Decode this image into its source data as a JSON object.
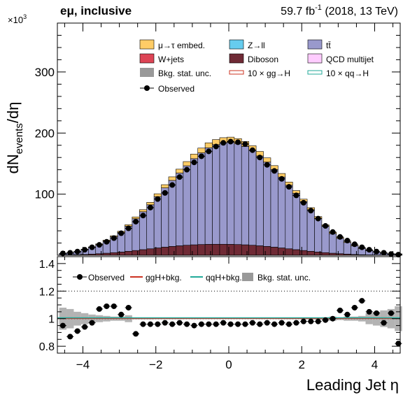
{
  "header": {
    "channel": "eμ, inclusive",
    "lumi": "59.7 fb",
    "lumi_sup": "-1",
    "lumi_tail": " (2018, 13 TeV)"
  },
  "chart_data": [
    {
      "type": "histogram-stack",
      "panel": "main",
      "ylabel": "dN",
      "ylabel_sub": "events",
      "ylabel_tail": "/dη",
      "y_multiplier": "×10",
      "y_multiplier_exp": "3",
      "xlim": [
        -4.7,
        4.7
      ],
      "ylim": [
        0,
        380
      ],
      "yticks": [
        100,
        200,
        300
      ],
      "x_bin_centers": [
        -4.55,
        -4.35,
        -4.15,
        -3.95,
        -3.75,
        -3.55,
        -3.35,
        -3.15,
        -2.95,
        -2.75,
        -2.55,
        -2.35,
        -2.15,
        -1.95,
        -1.75,
        -1.55,
        -1.35,
        -1.15,
        -0.95,
        -0.75,
        -0.55,
        -0.35,
        -0.15,
        0.05,
        0.25,
        0.45,
        0.65,
        0.85,
        1.05,
        1.25,
        1.45,
        1.65,
        1.85,
        2.05,
        2.25,
        2.45,
        2.65,
        2.85,
        3.05,
        3.25,
        3.45,
        3.65,
        3.85,
        4.05,
        4.25,
        4.45,
        4.65
      ],
      "series": [
        {
          "name": "Diboson",
          "color": "#6f2a35",
          "values": [
            0.4,
            0.6,
            0.9,
            1.3,
            1.9,
            2.6,
            3.4,
            4.3,
            5.3,
            6.5,
            7.8,
            9.2,
            10.6,
            12.0,
            13.3,
            14.5,
            15.5,
            16.4,
            17.1,
            17.6,
            17.9,
            18.0,
            18.0,
            17.9,
            17.6,
            17.1,
            16.4,
            15.5,
            14.5,
            13.3,
            12.0,
            10.6,
            9.2,
            7.8,
            6.5,
            5.3,
            4.3,
            3.4,
            2.6,
            1.9,
            1.3,
            0.9,
            0.6,
            0.4,
            0.3,
            0.2,
            0.1
          ]
        },
        {
          "name": "tt̄",
          "color": "#9999cc",
          "values": [
            2,
            3,
            5,
            8,
            11,
            15,
            20,
            26,
            32,
            41,
            52,
            62,
            72,
            84,
            97,
            108,
            119,
            130,
            141,
            150,
            158,
            163,
            166,
            167,
            165,
            161,
            155,
            147,
            138,
            127,
            116,
            104,
            92,
            80,
            68,
            55,
            43,
            32,
            25,
            19,
            14,
            10,
            7,
            5,
            3,
            2,
            2
          ]
        },
        {
          "name": "μ→τ embed.",
          "color": "#ffcc66",
          "values": [
            0.2,
            0.3,
            0.4,
            0.6,
            0.8,
            1.0,
            1.3,
            1.6,
            2.0,
            2.4,
            2.9,
            3.4,
            4.0,
            4.6,
            5.2,
            5.8,
            6.4,
            6.9,
            7.4,
            7.8,
            8.1,
            8.3,
            8.4,
            8.4,
            8.3,
            8.1,
            7.8,
            7.4,
            6.9,
            6.4,
            5.8,
            5.2,
            4.6,
            4.0,
            3.4,
            2.9,
            2.4,
            2.0,
            1.6,
            1.3,
            1.0,
            0.8,
            0.6,
            0.4,
            0.3,
            0.2,
            0.2
          ]
        }
      ],
      "observed": {
        "name": "Observed",
        "x": [
          -4.55,
          -4.35,
          -4.15,
          -3.95,
          -3.75,
          -3.55,
          -3.35,
          -3.15,
          -2.95,
          -2.75,
          -2.55,
          -2.35,
          -2.15,
          -1.95,
          -1.75,
          -1.55,
          -1.35,
          -1.15,
          -0.95,
          -0.75,
          -0.55,
          -0.35,
          -0.15,
          0.05,
          0.25,
          0.45,
          0.65,
          0.85,
          1.05,
          1.25,
          1.45,
          1.65,
          1.85,
          2.05,
          2.25,
          2.45,
          2.65,
          2.85,
          3.05,
          3.25,
          3.45,
          3.65,
          3.85,
          4.05,
          4.25,
          4.45,
          4.65
        ],
        "y": [
          3,
          4,
          6,
          9,
          13,
          17,
          22,
          28,
          36,
          44,
          55,
          65,
          78,
          92,
          102,
          115,
          128,
          140,
          152,
          162,
          170,
          178,
          184,
          186,
          185,
          182,
          172,
          160,
          148,
          138,
          125,
          112,
          98,
          86,
          73,
          60,
          48,
          38,
          30,
          24,
          18,
          13,
          9,
          6,
          4,
          2,
          1
        ]
      }
    },
    {
      "type": "ratio",
      "panel": "ratio",
      "xlabel": "Leading Jet  η",
      "xlim": [
        -4.7,
        4.7
      ],
      "ylim": [
        0.75,
        1.45
      ],
      "xticks": [
        -4,
        -2,
        0,
        2,
        4
      ],
      "yticks": [
        0.8,
        1,
        1.2,
        1.4
      ],
      "ytick_labels": [
        "0.8",
        "1",
        "1.2",
        "1.4"
      ],
      "dotted_lines": [
        1.0,
        1.2
      ],
      "observed_ratio": [
        0.95,
        0.87,
        0.91,
        0.94,
        0.97,
        1.07,
        1.09,
        1.09,
        1.03,
        1.08,
        0.89,
        0.96,
        0.96,
        0.96,
        0.97,
        0.96,
        0.97,
        0.96,
        0.95,
        0.96,
        0.96,
        0.96,
        0.97,
        0.96,
        0.96,
        0.96,
        0.97,
        0.96,
        0.97,
        0.96,
        0.97,
        0.96,
        0.97,
        0.98,
        0.98,
        0.98,
        0.99,
        1.0,
        1.06,
        1.03,
        1.08,
        1.13,
        1.05,
        1.04,
        0.97,
        1.04,
        0.82
      ],
      "stat_unc": [
        0.08,
        0.07,
        0.05,
        0.04,
        0.03,
        0.025,
        0.02,
        0.015,
        0.015,
        0.025,
        0.005,
        0.005,
        0.005,
        0.004,
        0.004,
        0.004,
        0.004,
        0.003,
        0.003,
        0.003,
        0.003,
        0.003,
        0.003,
        0.003,
        0.003,
        0.003,
        0.003,
        0.003,
        0.003,
        0.003,
        0.004,
        0.004,
        0.004,
        0.004,
        0.005,
        0.005,
        0.01,
        0.015,
        0.01,
        0.015,
        0.015,
        0.02,
        0.04,
        0.05,
        0.06,
        0.07,
        0.09
      ]
    }
  ],
  "legend": {
    "items": [
      {
        "label": "μ→τ embed.",
        "kind": "box",
        "color": "#ffcc66"
      },
      {
        "label": "Z→ll",
        "kind": "box",
        "color": "#66ccee"
      },
      {
        "label": "tt̄",
        "kind": "box",
        "color": "#9999cc"
      },
      {
        "label": "W+jets",
        "kind": "box",
        "color": "#dd4455"
      },
      {
        "label": "Diboson",
        "kind": "box",
        "color": "#6f2a35"
      },
      {
        "label": "QCD multijet",
        "kind": "box",
        "color": "#ffccff"
      },
      {
        "label": "Bkg. stat. unc.",
        "kind": "box",
        "color": "#999999"
      },
      {
        "label": "10 × gg→H",
        "kind": "line",
        "color": "#cc3322"
      },
      {
        "label": "10 × qq→H",
        "kind": "line",
        "color": "#22aa99"
      },
      {
        "label": "Observed",
        "kind": "marker",
        "color": "#000000"
      }
    ]
  },
  "ratio_legend": {
    "items": [
      {
        "label": "Observed",
        "kind": "marker",
        "color": "#000000"
      },
      {
        "label": "ggH+bkg.",
        "kind": "line",
        "color": "#cc3322"
      },
      {
        "label": "qqH+bkg.",
        "kind": "line",
        "color": "#22aa99"
      },
      {
        "label": "Bkg. stat. unc.",
        "kind": "box",
        "color": "#999999"
      }
    ]
  }
}
